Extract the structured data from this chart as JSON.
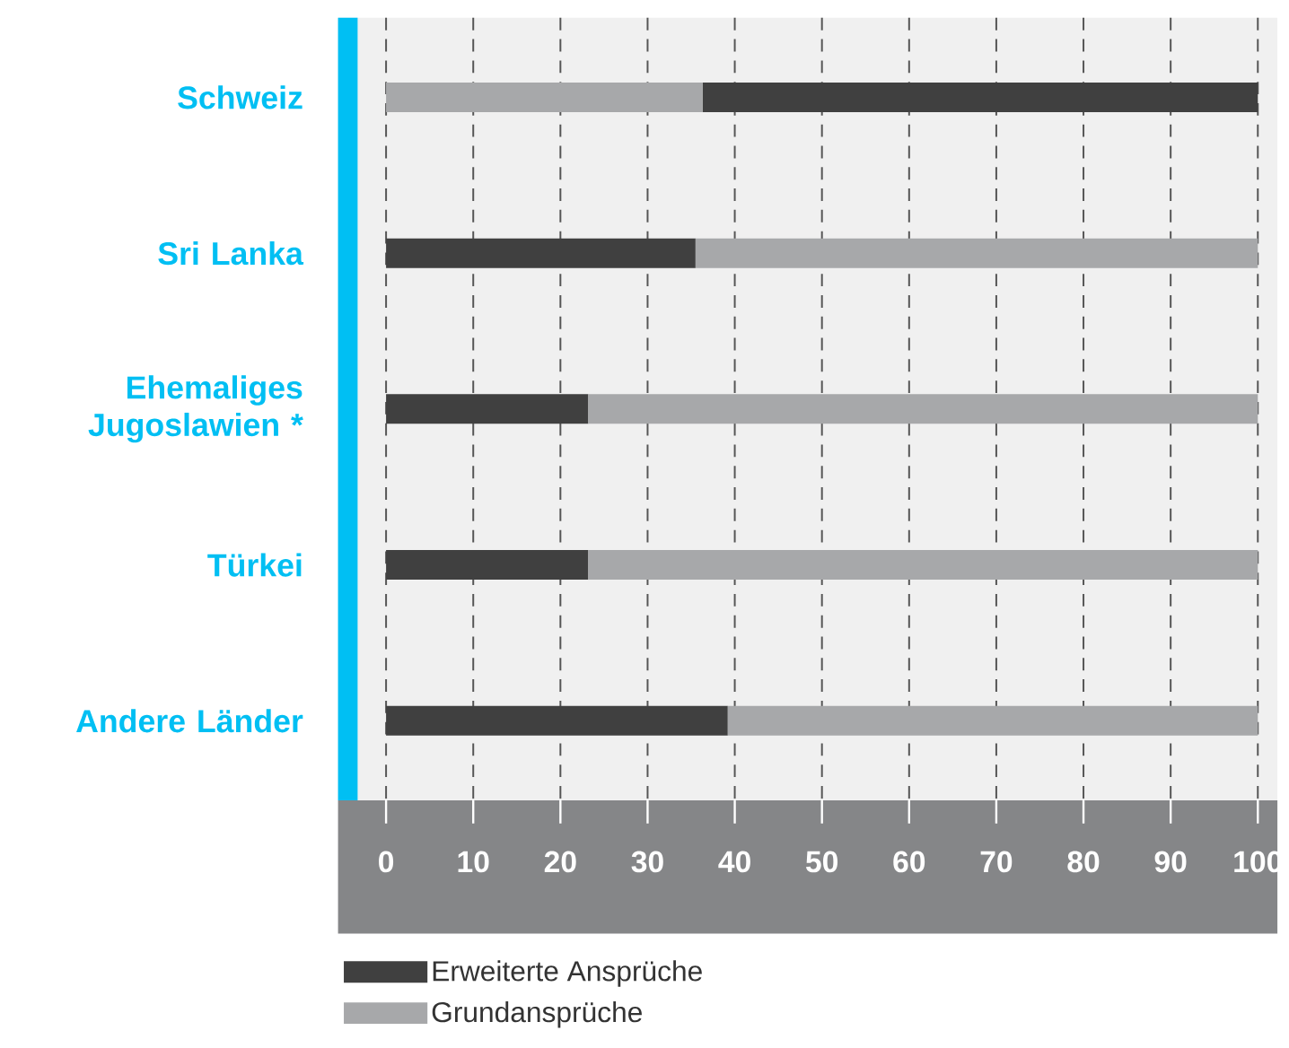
{
  "chart_data": {
    "type": "bar",
    "orientation": "horizontal",
    "categories": [
      "Schweiz",
      "Sri Lanka",
      "Ehemaliges Jugoslawien *",
      "Türkei",
      "Andere Länder"
    ],
    "series": [
      {
        "name": "Erweiterte Ansprüche",
        "color": "#404040",
        "values": [
          63.7,
          35.5,
          23.2,
          23.2,
          39.2
        ],
        "base": [
          36.3,
          0,
          0,
          0,
          0
        ]
      },
      {
        "name": "Grundansprüche",
        "color": "#a7a8aa",
        "values": [
          36.3,
          64.5,
          76.8,
          76.8,
          60.8
        ],
        "base": [
          0,
          35.5,
          23.2,
          23.2,
          39.2
        ]
      }
    ],
    "xlim": [
      0,
      100
    ],
    "xticks": [
      0,
      10,
      20,
      30,
      40,
      50,
      60,
      70,
      80,
      90,
      100
    ],
    "grid": "x",
    "legend": "bottom left"
  }
}
